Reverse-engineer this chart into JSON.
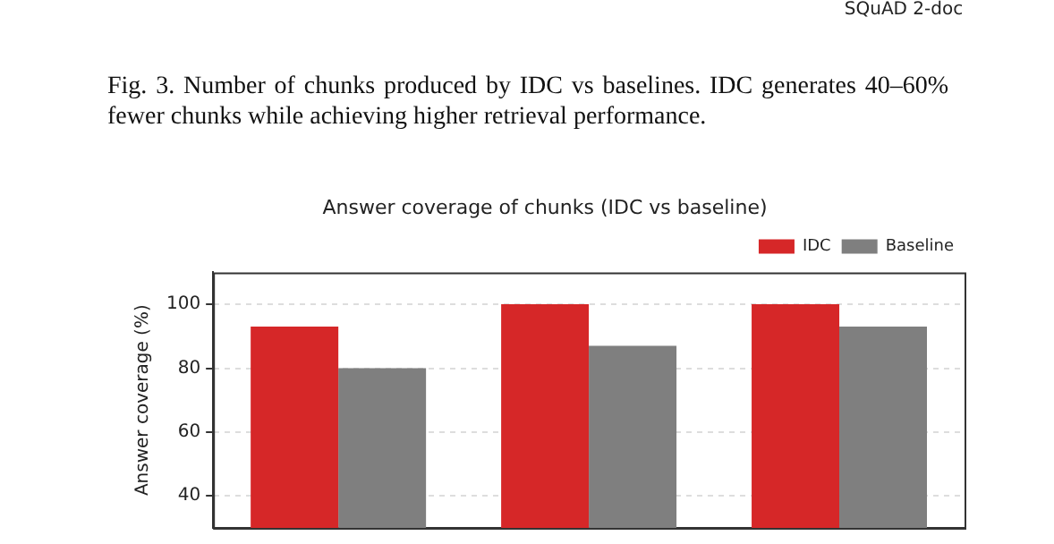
{
  "chart_data": {
    "type": "bar",
    "title": "Answer coverage of chunks (IDC vs baseline)",
    "ylabel": "Answer coverage (%)",
    "categories": [
      null,
      null,
      null
    ],
    "series": [
      {
        "name": "IDC",
        "color": "#d62728",
        "values": [
          93,
          100,
          100
        ]
      },
      {
        "name": "Baseline",
        "color": "#7f7f7f",
        "values": [
          80,
          87,
          93
        ]
      }
    ],
    "ylim": [
      30,
      110
    ],
    "yticks": [
      40,
      60,
      80,
      100
    ],
    "grid": "y",
    "legend": "top right",
    "tick_labels": "y",
    "annotations": [
      "SQuAD 2-doc",
      "Fig. 3.  Number of chunks produced by IDC vs baselines. IDC generates 40–60% fewer chunks while achieving higher retrieval performance."
    ]
  }
}
